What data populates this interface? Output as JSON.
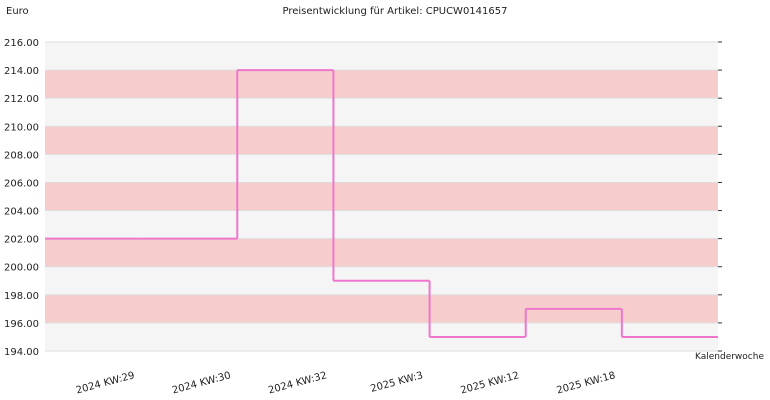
{
  "chart_data": {
    "type": "step",
    "title": "Preisentwicklung für Artikel: CPUCW0141657",
    "y_label": "Euro",
    "x_label": "Kalenderwoche",
    "categories": [
      null,
      "2024 KW:29",
      "2024 KW:30",
      "2024 KW:32",
      "2025 KW:3",
      "2025 KW:12",
      "2025 KW:18"
    ],
    "series": [
      {
        "color": "#ee77cc",
        "values": [
          202,
          202,
          214,
          199,
          195,
          197,
          195
        ]
      }
    ],
    "ylim": [
      194,
      216
    ],
    "yticks": [
      {
        "value": 194,
        "label": "194.00"
      },
      {
        "value": 196,
        "label": "196.00"
      },
      {
        "value": 198,
        "label": "198.00"
      },
      {
        "value": 200,
        "label": "200.00"
      },
      {
        "value": 202,
        "label": "202.00"
      },
      {
        "value": 204,
        "label": "204.00"
      },
      {
        "value": 206,
        "label": "206.00"
      },
      {
        "value": 208,
        "label": "208.00"
      },
      {
        "value": 210,
        "label": "210.00"
      },
      {
        "value": 212,
        "label": "212.00"
      },
      {
        "value": 214,
        "label": "214.00"
      },
      {
        "value": 216,
        "label": "216.00"
      }
    ],
    "band_colors": [
      "#f5f5f5",
      "#f7cccc"
    ]
  }
}
